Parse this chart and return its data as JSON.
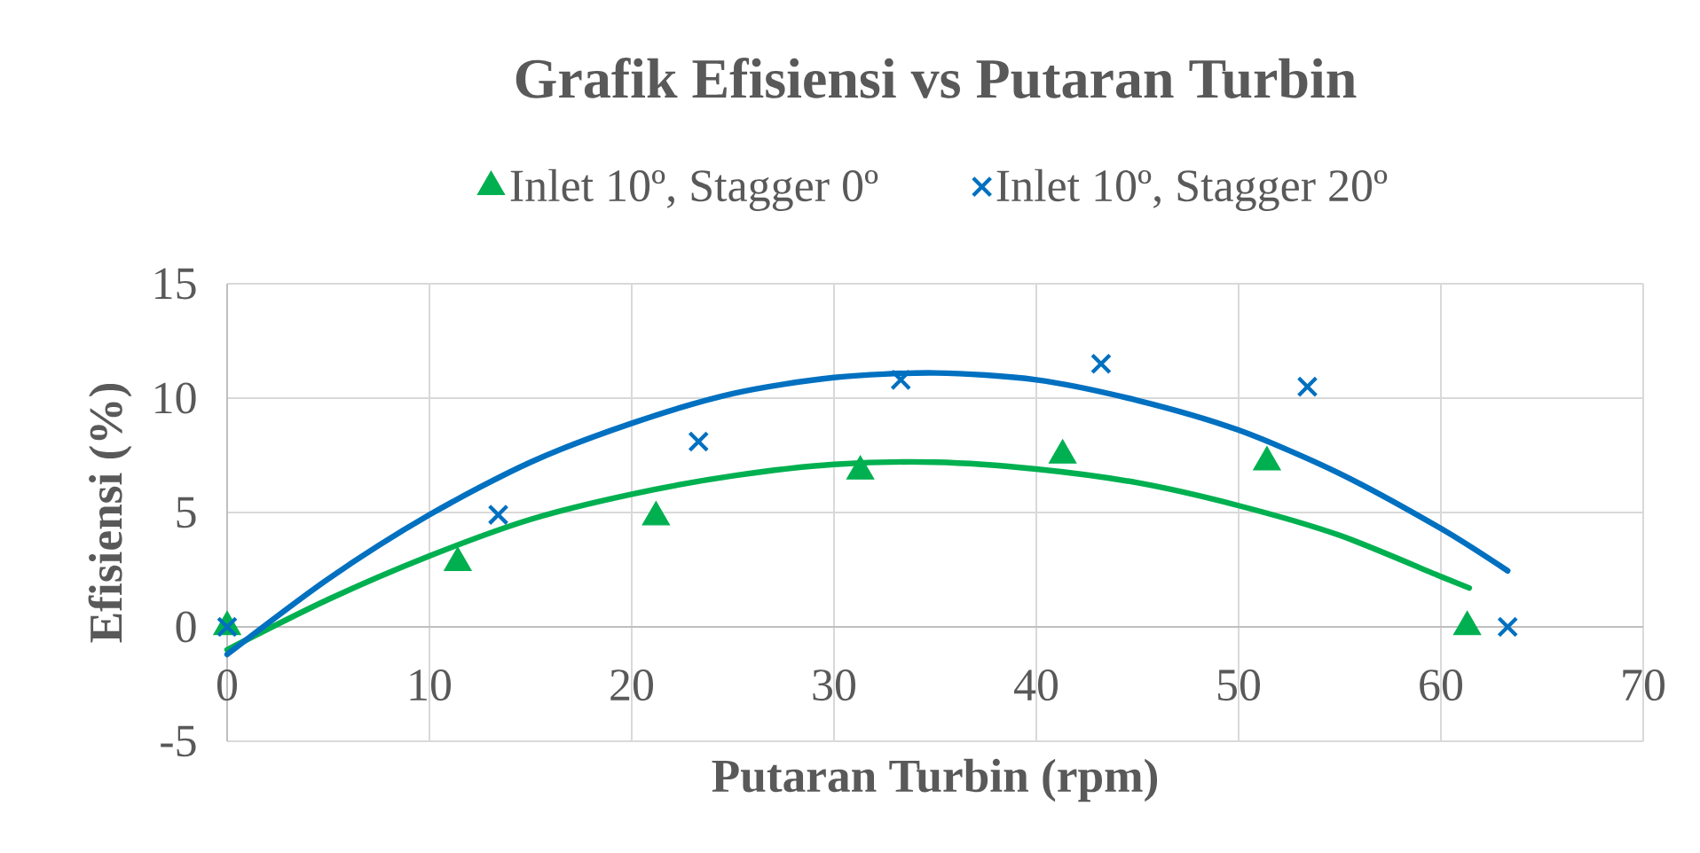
{
  "chart_data": {
    "type": "scatter",
    "title": "Grafik Efisiensi vs Putaran Turbin",
    "xlabel": "Putaran Turbin (rpm)",
    "ylabel": "Efisiensi (%)",
    "xlim": [
      0,
      70
    ],
    "ylim": [
      -5,
      15
    ],
    "xticks": [
      0,
      10,
      20,
      30,
      40,
      50,
      60,
      70
    ],
    "yticks": [
      -5,
      0,
      5,
      10,
      15
    ],
    "grid": true,
    "legend": "top",
    "series": [
      {
        "name": "Inlet 10º, Stagger 0º",
        "color": "#00b050",
        "marker": "triangle",
        "x": [
          0,
          11.4,
          21.2,
          31.3,
          41.3,
          51.4,
          61.3
        ],
        "values": [
          0,
          2.8,
          4.8,
          6.8,
          7.5,
          7.2,
          0
        ]
      },
      {
        "name": "Inlet 10º, Stagger 20º",
        "color": "#0070c0",
        "marker": "cross",
        "x": [
          0,
          13.4,
          23.3,
          33.3,
          43.2,
          53.4,
          63.3
        ],
        "values": [
          0,
          4.9,
          8.1,
          10.8,
          11.5,
          10.5,
          0
        ]
      },
      {
        "type": "line",
        "color": "#00b050",
        "x": [
          0,
          5,
          10,
          15,
          20,
          25,
          30,
          35,
          40,
          45,
          50,
          55,
          60,
          61.4
        ],
        "values": [
          -1.0,
          1.2,
          3.1,
          4.7,
          5.8,
          6.6,
          7.1,
          7.2,
          6.9,
          6.3,
          5.3,
          4.0,
          2.2,
          1.7
        ]
      },
      {
        "type": "line",
        "color": "#0070c0",
        "x": [
          0,
          5,
          10,
          15,
          20,
          25,
          30,
          35,
          40,
          45,
          50,
          55,
          60,
          63.3
        ],
        "values": [
          -1.2,
          2.1,
          4.9,
          7.2,
          8.9,
          10.2,
          10.9,
          11.1,
          10.8,
          9.9,
          8.6,
          6.7,
          4.3,
          2.45
        ]
      }
    ]
  }
}
